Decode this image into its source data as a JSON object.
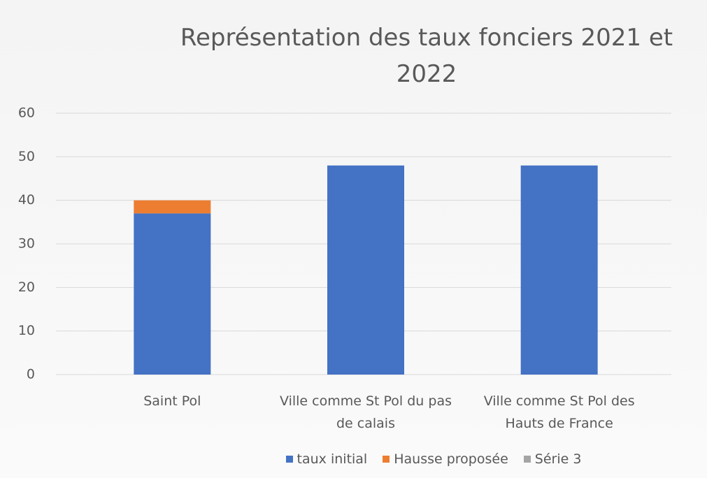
{
  "chart_data": {
    "type": "stacked_bar",
    "title": "Représentation des taux fonciers 2021 et 2022",
    "categories": [
      "Saint Pol",
      "Ville comme St Pol du pas de calais",
      "Ville comme St Pol des Hauts de France"
    ],
    "series": [
      {
        "name": "taux initial",
        "color": "#4472c4",
        "values": [
          37,
          48,
          48
        ]
      },
      {
        "name": "Hausse proposée",
        "color": "#ed7d31",
        "values": [
          3,
          null,
          null
        ]
      },
      {
        "name": "Série 3",
        "color": "#a5a5a5",
        "values": [
          null,
          null,
          null
        ]
      }
    ],
    "ylim": [
      0,
      60
    ],
    "yticks": [
      0,
      10,
      20,
      30,
      40,
      50,
      60
    ],
    "grid": true
  }
}
